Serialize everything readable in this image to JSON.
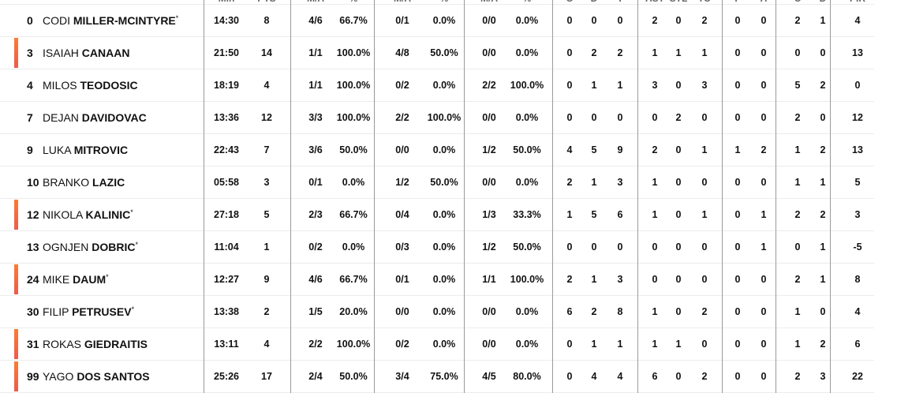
{
  "headers": [
    "Min",
    "PTS",
    "M/A",
    "%",
    "M/A",
    "%",
    "M/A",
    "%",
    "O",
    "D",
    "T",
    "AST",
    "STL",
    "TO",
    "F",
    "A",
    "C",
    "D",
    "PIR"
  ],
  "accent_color": "#ff7a30",
  "players": [
    {
      "no": "0",
      "first": "CODI",
      "last": "MILLER-MCINTYRE",
      "starter": true,
      "marked": false,
      "stats": [
        "14:30",
        "8",
        "4/6",
        "66.7%",
        "0/1",
        "0.0%",
        "0/0",
        "0.0%",
        "0",
        "0",
        "0",
        "2",
        "0",
        "2",
        "0",
        "0",
        "2",
        "1",
        "4"
      ]
    },
    {
      "no": "3",
      "first": "ISAIAH",
      "last": "CANAAN",
      "starter": false,
      "marked": true,
      "stats": [
        "21:50",
        "14",
        "1/1",
        "100.0%",
        "4/8",
        "50.0%",
        "0/0",
        "0.0%",
        "0",
        "2",
        "2",
        "1",
        "1",
        "1",
        "0",
        "0",
        "0",
        "0",
        "13"
      ]
    },
    {
      "no": "4",
      "first": "MILOS",
      "last": "TEODOSIC",
      "starter": false,
      "marked": false,
      "stats": [
        "18:19",
        "4",
        "1/1",
        "100.0%",
        "0/2",
        "0.0%",
        "2/2",
        "100.0%",
        "0",
        "1",
        "1",
        "3",
        "0",
        "3",
        "0",
        "0",
        "5",
        "2",
        "0"
      ]
    },
    {
      "no": "7",
      "first": "DEJAN",
      "last": "DAVIDOVAC",
      "starter": false,
      "marked": false,
      "stats": [
        "13:36",
        "12",
        "3/3",
        "100.0%",
        "2/2",
        "100.0%",
        "0/0",
        "0.0%",
        "0",
        "0",
        "0",
        "0",
        "2",
        "0",
        "0",
        "0",
        "2",
        "0",
        "12"
      ]
    },
    {
      "no": "9",
      "first": "LUKA",
      "last": "MITROVIC",
      "starter": false,
      "marked": false,
      "stats": [
        "22:43",
        "7",
        "3/6",
        "50.0%",
        "0/0",
        "0.0%",
        "1/2",
        "50.0%",
        "4",
        "5",
        "9",
        "2",
        "0",
        "1",
        "1",
        "2",
        "1",
        "2",
        "13"
      ]
    },
    {
      "no": "10",
      "first": "BRANKO",
      "last": "LAZIC",
      "starter": false,
      "marked": false,
      "stats": [
        "05:58",
        "3",
        "0/1",
        "0.0%",
        "1/2",
        "50.0%",
        "0/0",
        "0.0%",
        "2",
        "1",
        "3",
        "1",
        "0",
        "0",
        "0",
        "0",
        "1",
        "1",
        "5"
      ]
    },
    {
      "no": "12",
      "first": "NIKOLA",
      "last": "KALINIC",
      "starter": true,
      "marked": true,
      "stats": [
        "27:18",
        "5",
        "2/3",
        "66.7%",
        "0/4",
        "0.0%",
        "1/3",
        "33.3%",
        "1",
        "5",
        "6",
        "1",
        "0",
        "1",
        "0",
        "1",
        "2",
        "2",
        "3"
      ]
    },
    {
      "no": "13",
      "first": "OGNJEN",
      "last": "DOBRIC",
      "starter": true,
      "marked": false,
      "stats": [
        "11:04",
        "1",
        "0/2",
        "0.0%",
        "0/3",
        "0.0%",
        "1/2",
        "50.0%",
        "0",
        "0",
        "0",
        "0",
        "0",
        "0",
        "0",
        "1",
        "0",
        "1",
        "-5"
      ]
    },
    {
      "no": "24",
      "first": "MIKE",
      "last": "DAUM",
      "starter": true,
      "marked": true,
      "stats": [
        "12:27",
        "9",
        "4/6",
        "66.7%",
        "0/1",
        "0.0%",
        "1/1",
        "100.0%",
        "2",
        "1",
        "3",
        "0",
        "0",
        "0",
        "0",
        "0",
        "2",
        "1",
        "8"
      ]
    },
    {
      "no": "30",
      "first": "FILIP",
      "last": "PETRUSEV",
      "starter": true,
      "marked": false,
      "stats": [
        "13:38",
        "2",
        "1/5",
        "20.0%",
        "0/0",
        "0.0%",
        "0/0",
        "0.0%",
        "6",
        "2",
        "8",
        "1",
        "0",
        "2",
        "0",
        "0",
        "1",
        "0",
        "4"
      ]
    },
    {
      "no": "31",
      "first": "ROKAS",
      "last": "GIEDRAITIS",
      "starter": false,
      "marked": true,
      "stats": [
        "13:11",
        "4",
        "2/2",
        "100.0%",
        "0/2",
        "0.0%",
        "0/0",
        "0.0%",
        "0",
        "1",
        "1",
        "1",
        "1",
        "0",
        "0",
        "0",
        "1",
        "2",
        "6"
      ]
    },
    {
      "no": "99",
      "first": "YAGO",
      "last": "DOS SANTOS",
      "starter": false,
      "marked": true,
      "stats": [
        "25:26",
        "17",
        "2/4",
        "50.0%",
        "3/4",
        "75.0%",
        "4/5",
        "80.0%",
        "0",
        "4",
        "4",
        "6",
        "0",
        "2",
        "0",
        "0",
        "2",
        "3",
        "22"
      ]
    }
  ]
}
